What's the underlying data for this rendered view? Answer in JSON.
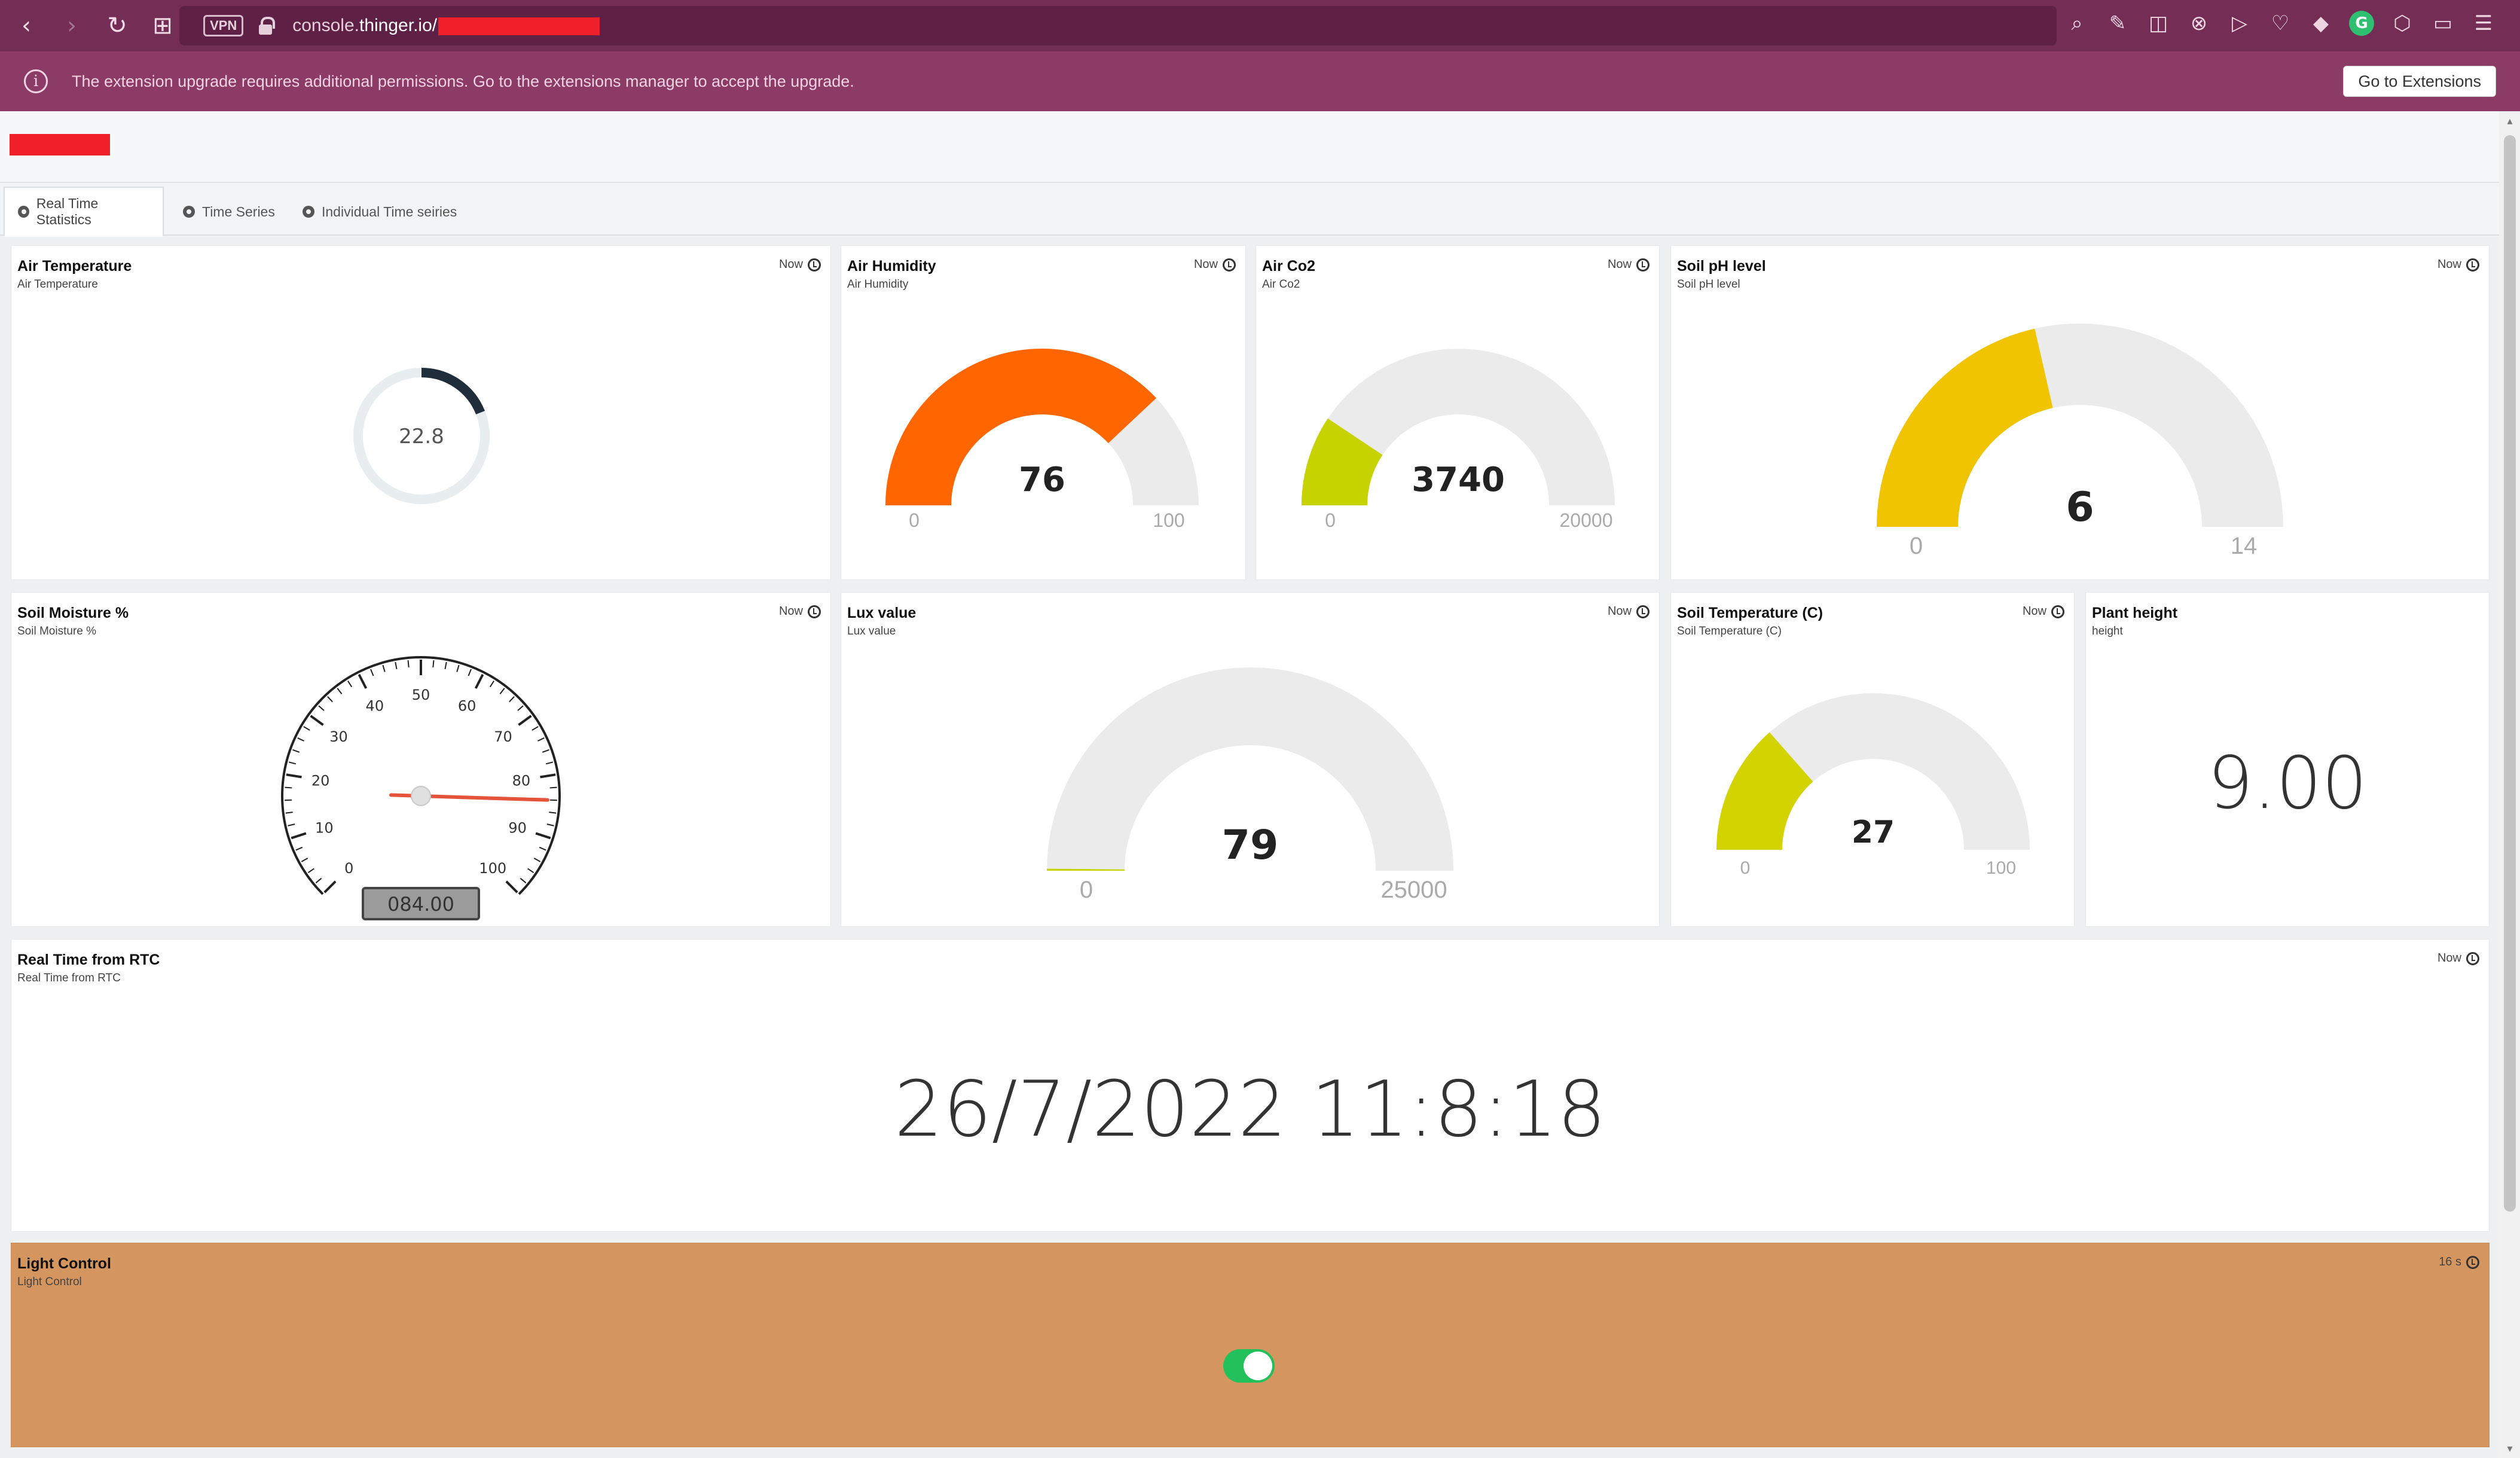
{
  "browser": {
    "url_prefix": "console.",
    "url_domain": "thinger.io",
    "url_rest": "/",
    "vpn_label": "VPN"
  },
  "infobar": {
    "message": "The extension upgrade requires additional permissions. Go to the extensions manager to accept the upgrade.",
    "button_label": "Go to Extensions"
  },
  "tabs": [
    {
      "label": "Real Time Statistics",
      "active": true
    },
    {
      "label": "Time Series",
      "active": false
    },
    {
      "label": "Individual Time seiries",
      "active": false
    }
  ],
  "widgets": {
    "air_temperature": {
      "title": "Air Temperature",
      "subtitle": "Air Temperature",
      "time": "Now",
      "value": "22.8",
      "fill_fraction": 0.19,
      "color": "#1f2e3a"
    },
    "air_humidity": {
      "title": "Air Humidity",
      "subtitle": "Air Humidity",
      "time": "Now",
      "value": "76",
      "min": "0",
      "max": "100",
      "value_num": 76,
      "min_num": 0,
      "max_num": 100,
      "color": "#ff6600"
    },
    "air_co2": {
      "title": "Air Co2",
      "subtitle": "Air Co2",
      "time": "Now",
      "value": "3740",
      "min": "0",
      "max": "20000",
      "value_num": 3740,
      "min_num": 0,
      "max_num": 20000,
      "color": "#c6d300"
    },
    "soil_ph": {
      "title": "Soil pH level",
      "subtitle": "Soil pH level",
      "time": "Now",
      "value": "6",
      "min": "0",
      "max": "14",
      "value_num": 6,
      "min_num": 0,
      "max_num": 14,
      "color": "#f0c400"
    },
    "soil_moisture": {
      "title": "Soil Moisture %",
      "subtitle": "Soil Moisture %",
      "time": "Now",
      "readout": "084.00",
      "value_num": 84,
      "ticks": [
        "0",
        "10",
        "20",
        "30",
        "40",
        "50",
        "60",
        "70",
        "80",
        "90",
        "100"
      ]
    },
    "lux": {
      "title": "Lux value",
      "subtitle": "Lux value",
      "time": "Now",
      "value": "79",
      "min": "0",
      "max": "25000",
      "value_num": 79,
      "min_num": 0,
      "max_num": 25000,
      "color": "#c6d300"
    },
    "soil_temperature": {
      "title": "Soil Temperature (C)",
      "subtitle": "Soil Temperature (C)",
      "time": "Now",
      "value": "27",
      "min": "0",
      "max": "100",
      "value_num": 27,
      "min_num": 0,
      "max_num": 100,
      "color": "#d2d300"
    },
    "plant_height": {
      "title": "Plant height",
      "subtitle": "height",
      "value": "9.00"
    },
    "rtc": {
      "title": "Real Time from RTC",
      "subtitle": "Real Time from RTC",
      "time": "Now",
      "value": "26/7/2022 11:8:18"
    },
    "light_control": {
      "title": "Light Control",
      "subtitle": "Light Control",
      "time": "16 s",
      "state": true
    }
  },
  "colors": {
    "browser_bar": "#742e55",
    "info_bar": "#8c3a66",
    "light_control_bg": "#d5955e",
    "toggle_on": "#22c05a",
    "gauge_track": "#ebebeb"
  },
  "icons": [
    "back-icon",
    "forward-icon",
    "reload-icon",
    "grid-icon",
    "lock-icon",
    "info-icon",
    "clock-icon",
    "cog-icon"
  ]
}
